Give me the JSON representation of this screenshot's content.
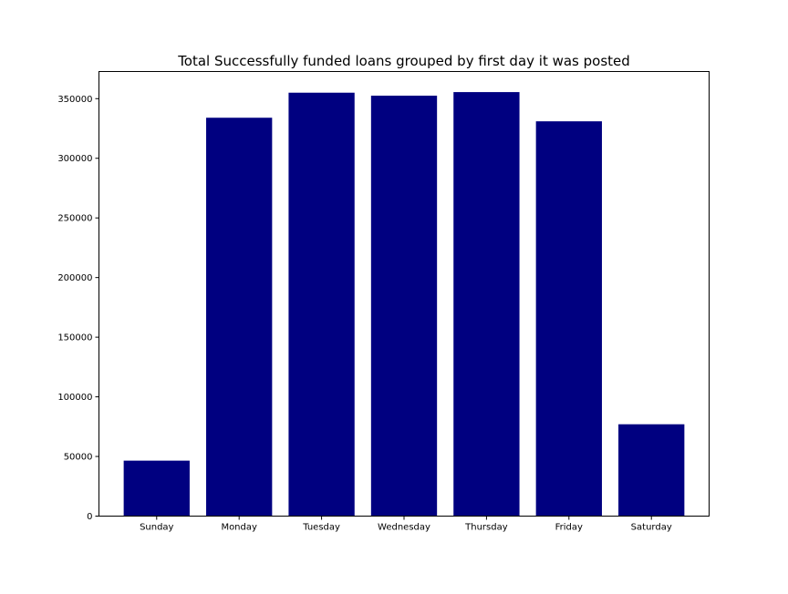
{
  "chart_data": {
    "type": "bar",
    "title": "Total Successfully funded loans grouped by first day it was posted",
    "xlabel": "",
    "ylabel": "",
    "categories": [
      "Sunday",
      "Monday",
      "Tuesday",
      "Wednesday",
      "Thursday",
      "Friday",
      "Saturday"
    ],
    "values": [
      46500,
      334000,
      355000,
      352500,
      355500,
      331000,
      77000
    ],
    "ylim": [
      0,
      372750
    ],
    "yticks": [
      0,
      50000,
      100000,
      150000,
      200000,
      250000,
      300000,
      350000
    ],
    "grid": false,
    "legend": "none",
    "bar_color": "#000080"
  }
}
